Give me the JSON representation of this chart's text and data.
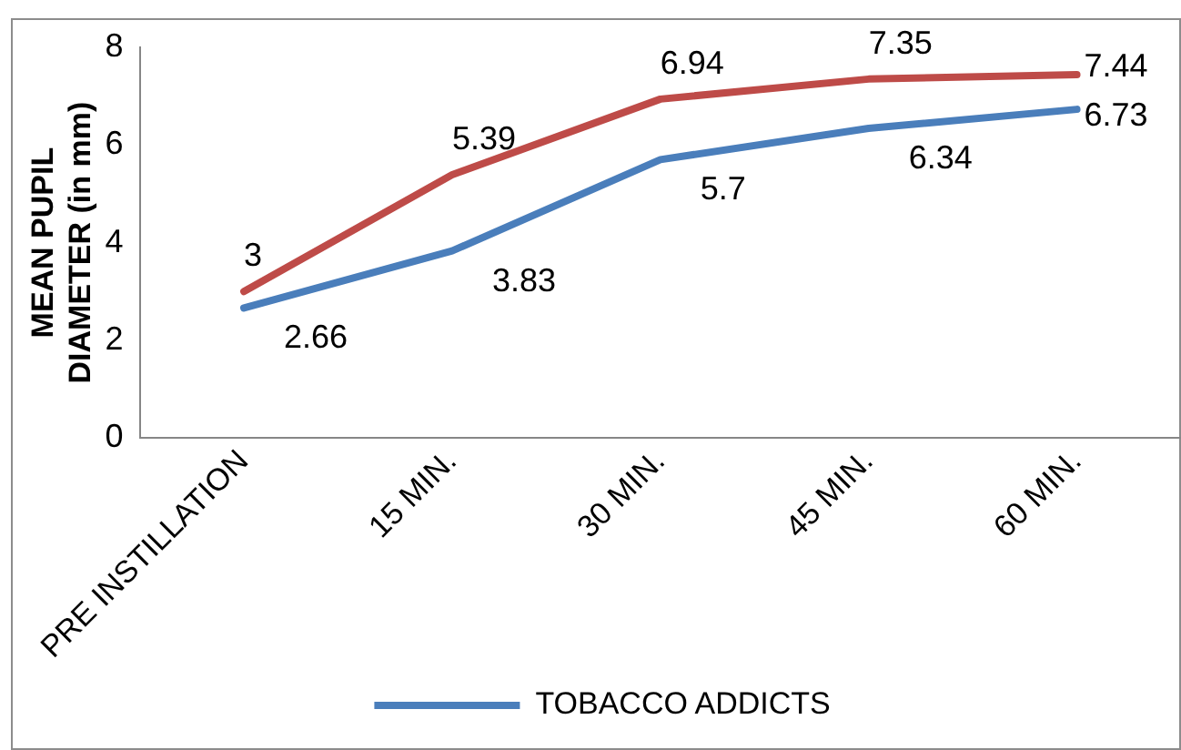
{
  "chart_data": {
    "type": "line",
    "ylabel": "MEAN PUPIL DIAMETER (in mm)",
    "categories": [
      "PRE INSTILLATION",
      "15 MIN.",
      "30 MIN.",
      "45 MIN.",
      "60 MIN."
    ],
    "series": [
      {
        "name": "TOBACCO ADDICTS",
        "color": "#4a7ebb",
        "values": [
          2.66,
          3.83,
          5.7,
          6.34,
          6.73
        ]
      },
      {
        "color": "#be4b48",
        "values": [
          3,
          5.39,
          6.94,
          7.35,
          7.44
        ]
      }
    ],
    "ylim": [
      0,
      8
    ],
    "yticks": [
      0,
      2,
      4,
      6,
      8
    ],
    "grid": false,
    "legend": "bottom",
    "marker": "none",
    "line_style": "solid",
    "data_labels": true
  }
}
